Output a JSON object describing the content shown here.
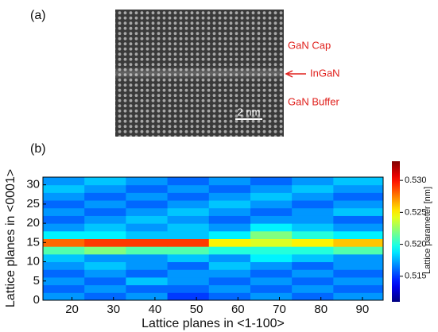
{
  "panel_a": {
    "label": "(a)",
    "layers": [
      "GaN Cap",
      "InGaN",
      "GaN Buffer"
    ],
    "scale_bar": "2 nm"
  },
  "chart_data": {
    "type": "heatmap",
    "panel_label": "(b)",
    "xlabel": "Lattice planes in <1-100>",
    "ylabel": "Lattice planes in <0001>",
    "colorbar_label": "Lattice parameter [nm]",
    "xlim": [
      13,
      95
    ],
    "ylim": [
      0,
      32
    ],
    "xticks": [
      20,
      30,
      40,
      50,
      60,
      70,
      80,
      90
    ],
    "yticks": [
      0,
      5,
      10,
      15,
      20,
      25,
      30
    ],
    "zlim": [
      0.511,
      0.533
    ],
    "zticks": [
      0.515,
      {
        "value": 0.52,
        "label": "0.520"
      },
      0.525,
      {
        "value": 0.53,
        "label": "0.530"
      }
    ],
    "colormap": "jet",
    "x_bins": [
      13,
      23,
      33,
      43,
      53,
      63,
      73,
      83,
      95
    ],
    "y_bins": [
      0,
      2,
      4,
      6,
      8,
      10,
      12,
      14,
      16,
      18,
      20,
      22,
      24,
      26,
      28,
      30,
      32
    ],
    "values": [
      [
        0.517,
        0.516,
        0.517,
        0.515,
        0.516,
        0.517,
        0.516,
        0.517
      ],
      [
        0.516,
        0.517,
        0.516,
        0.516,
        0.517,
        0.516,
        0.517,
        0.516
      ],
      [
        0.517,
        0.516,
        0.518,
        0.517,
        0.516,
        0.517,
        0.516,
        0.517
      ],
      [
        0.516,
        0.517,
        0.516,
        0.517,
        0.517,
        0.516,
        0.517,
        0.516
      ],
      [
        0.517,
        0.518,
        0.517,
        0.516,
        0.518,
        0.517,
        0.516,
        0.517
      ],
      [
        0.518,
        0.517,
        0.517,
        0.518,
        0.517,
        0.519,
        0.518,
        0.517
      ],
      [
        0.521,
        0.522,
        0.521,
        0.521,
        0.52,
        0.52,
        0.52,
        0.521
      ],
      [
        0.528,
        0.529,
        0.529,
        0.529,
        0.525,
        0.524,
        0.525,
        0.526
      ],
      [
        0.519,
        0.519,
        0.518,
        0.518,
        0.519,
        0.522,
        0.52,
        0.519
      ],
      [
        0.517,
        0.518,
        0.517,
        0.518,
        0.517,
        0.519,
        0.518,
        0.517
      ],
      [
        0.516,
        0.517,
        0.518,
        0.517,
        0.516,
        0.517,
        0.517,
        0.516
      ],
      [
        0.517,
        0.516,
        0.517,
        0.518,
        0.517,
        0.516,
        0.517,
        0.518
      ],
      [
        0.516,
        0.517,
        0.516,
        0.517,
        0.518,
        0.517,
        0.516,
        0.517
      ],
      [
        0.517,
        0.516,
        0.517,
        0.516,
        0.517,
        0.518,
        0.517,
        0.516
      ],
      [
        0.518,
        0.517,
        0.516,
        0.517,
        0.516,
        0.517,
        0.518,
        0.517
      ],
      [
        0.517,
        0.518,
        0.517,
        0.516,
        0.517,
        0.516,
        0.517,
        0.518
      ]
    ]
  }
}
